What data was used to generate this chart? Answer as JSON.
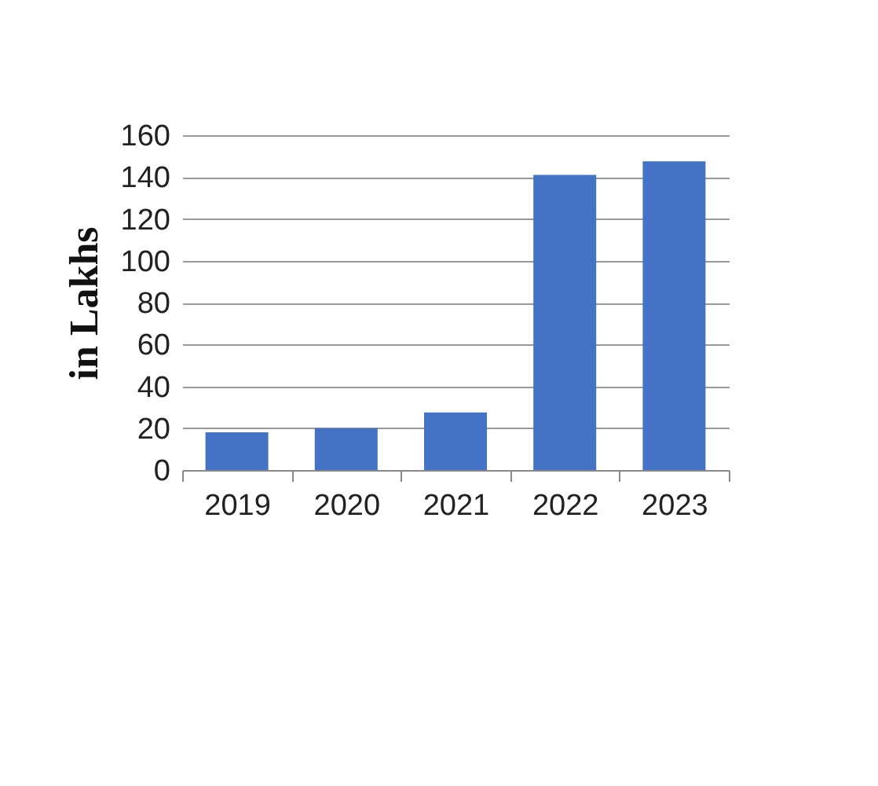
{
  "chart_data": {
    "type": "bar",
    "ylabel": "in Lakhs",
    "categories": [
      "2019",
      "2020",
      "2021",
      "2022",
      "2023"
    ],
    "values": [
      18,
      20,
      27.5,
      141,
      147.5
    ],
    "color": "#4472c4",
    "ylim": [
      0,
      160
    ],
    "yticks": [
      0,
      20,
      40,
      60,
      80,
      100,
      120,
      140,
      160
    ],
    "grid": "y"
  }
}
